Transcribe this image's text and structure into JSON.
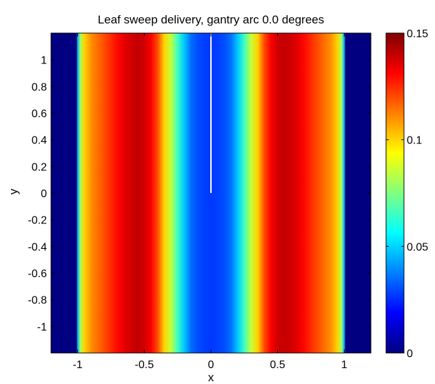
{
  "chart_data": {
    "type": "heatmap",
    "title": "Leaf sweep delivery, gantry arc 0.0 degrees",
    "xlabel": "x",
    "ylabel": "y",
    "xlim": [
      -1.2,
      1.2
    ],
    "ylim": [
      -1.2,
      1.2
    ],
    "x_ticks": [
      -1,
      -0.5,
      0,
      0.5,
      1
    ],
    "x_tick_labels": [
      "-1",
      "-0.5",
      "0",
      "0.5",
      "1"
    ],
    "y_ticks": [
      1,
      0.8,
      0.6,
      0.4,
      0.2,
      0,
      -0.2,
      -0.4,
      -0.6,
      -0.8,
      -1
    ],
    "y_tick_labels": [
      "1",
      "0.8",
      "0.6",
      "0.4",
      "0.2",
      "0",
      "-0.2",
      "-0.4",
      "-0.6",
      "-0.8",
      "-1"
    ],
    "colormap": "jet",
    "clim": [
      0,
      0.15
    ],
    "colorbar_ticks": [
      0,
      0.05,
      0.1,
      0.15
    ],
    "colorbar_tick_labels": [
      "0",
      "0.05",
      "0.1",
      "0.15"
    ],
    "profile_along_x": {
      "x": [
        -1.2,
        -1.01,
        -1.0,
        -0.98,
        -0.95,
        -0.9,
        -0.85,
        -0.8,
        -0.75,
        -0.7,
        -0.65,
        -0.6,
        -0.55,
        -0.5,
        -0.45,
        -0.4,
        -0.35,
        -0.3,
        -0.25,
        -0.2,
        -0.15,
        -0.1,
        -0.05,
        0,
        0.05,
        0.1,
        0.15,
        0.2,
        0.25,
        0.3,
        0.35,
        0.4,
        0.45,
        0.5,
        0.55,
        0.6,
        0.65,
        0.7,
        0.75,
        0.8,
        0.85,
        0.9,
        0.95,
        0.98,
        1.0,
        1.01,
        1.2
      ],
      "value": [
        0,
        0,
        0.045,
        0.08,
        0.1,
        0.11,
        0.115,
        0.12,
        0.125,
        0.13,
        0.135,
        0.138,
        0.14,
        0.138,
        0.132,
        0.12,
        0.1,
        0.085,
        0.065,
        0.048,
        0.035,
        0.03,
        0.028,
        0.027,
        0.028,
        0.03,
        0.035,
        0.048,
        0.065,
        0.085,
        0.1,
        0.12,
        0.132,
        0.138,
        0.14,
        0.138,
        0.135,
        0.13,
        0.125,
        0.12,
        0.115,
        0.11,
        0.1,
        0.08,
        0.045,
        0,
        0
      ]
    },
    "annotation_line": {
      "x": 0,
      "y_from": 0,
      "y_to": 1.2,
      "color": "#ffffff"
    }
  }
}
